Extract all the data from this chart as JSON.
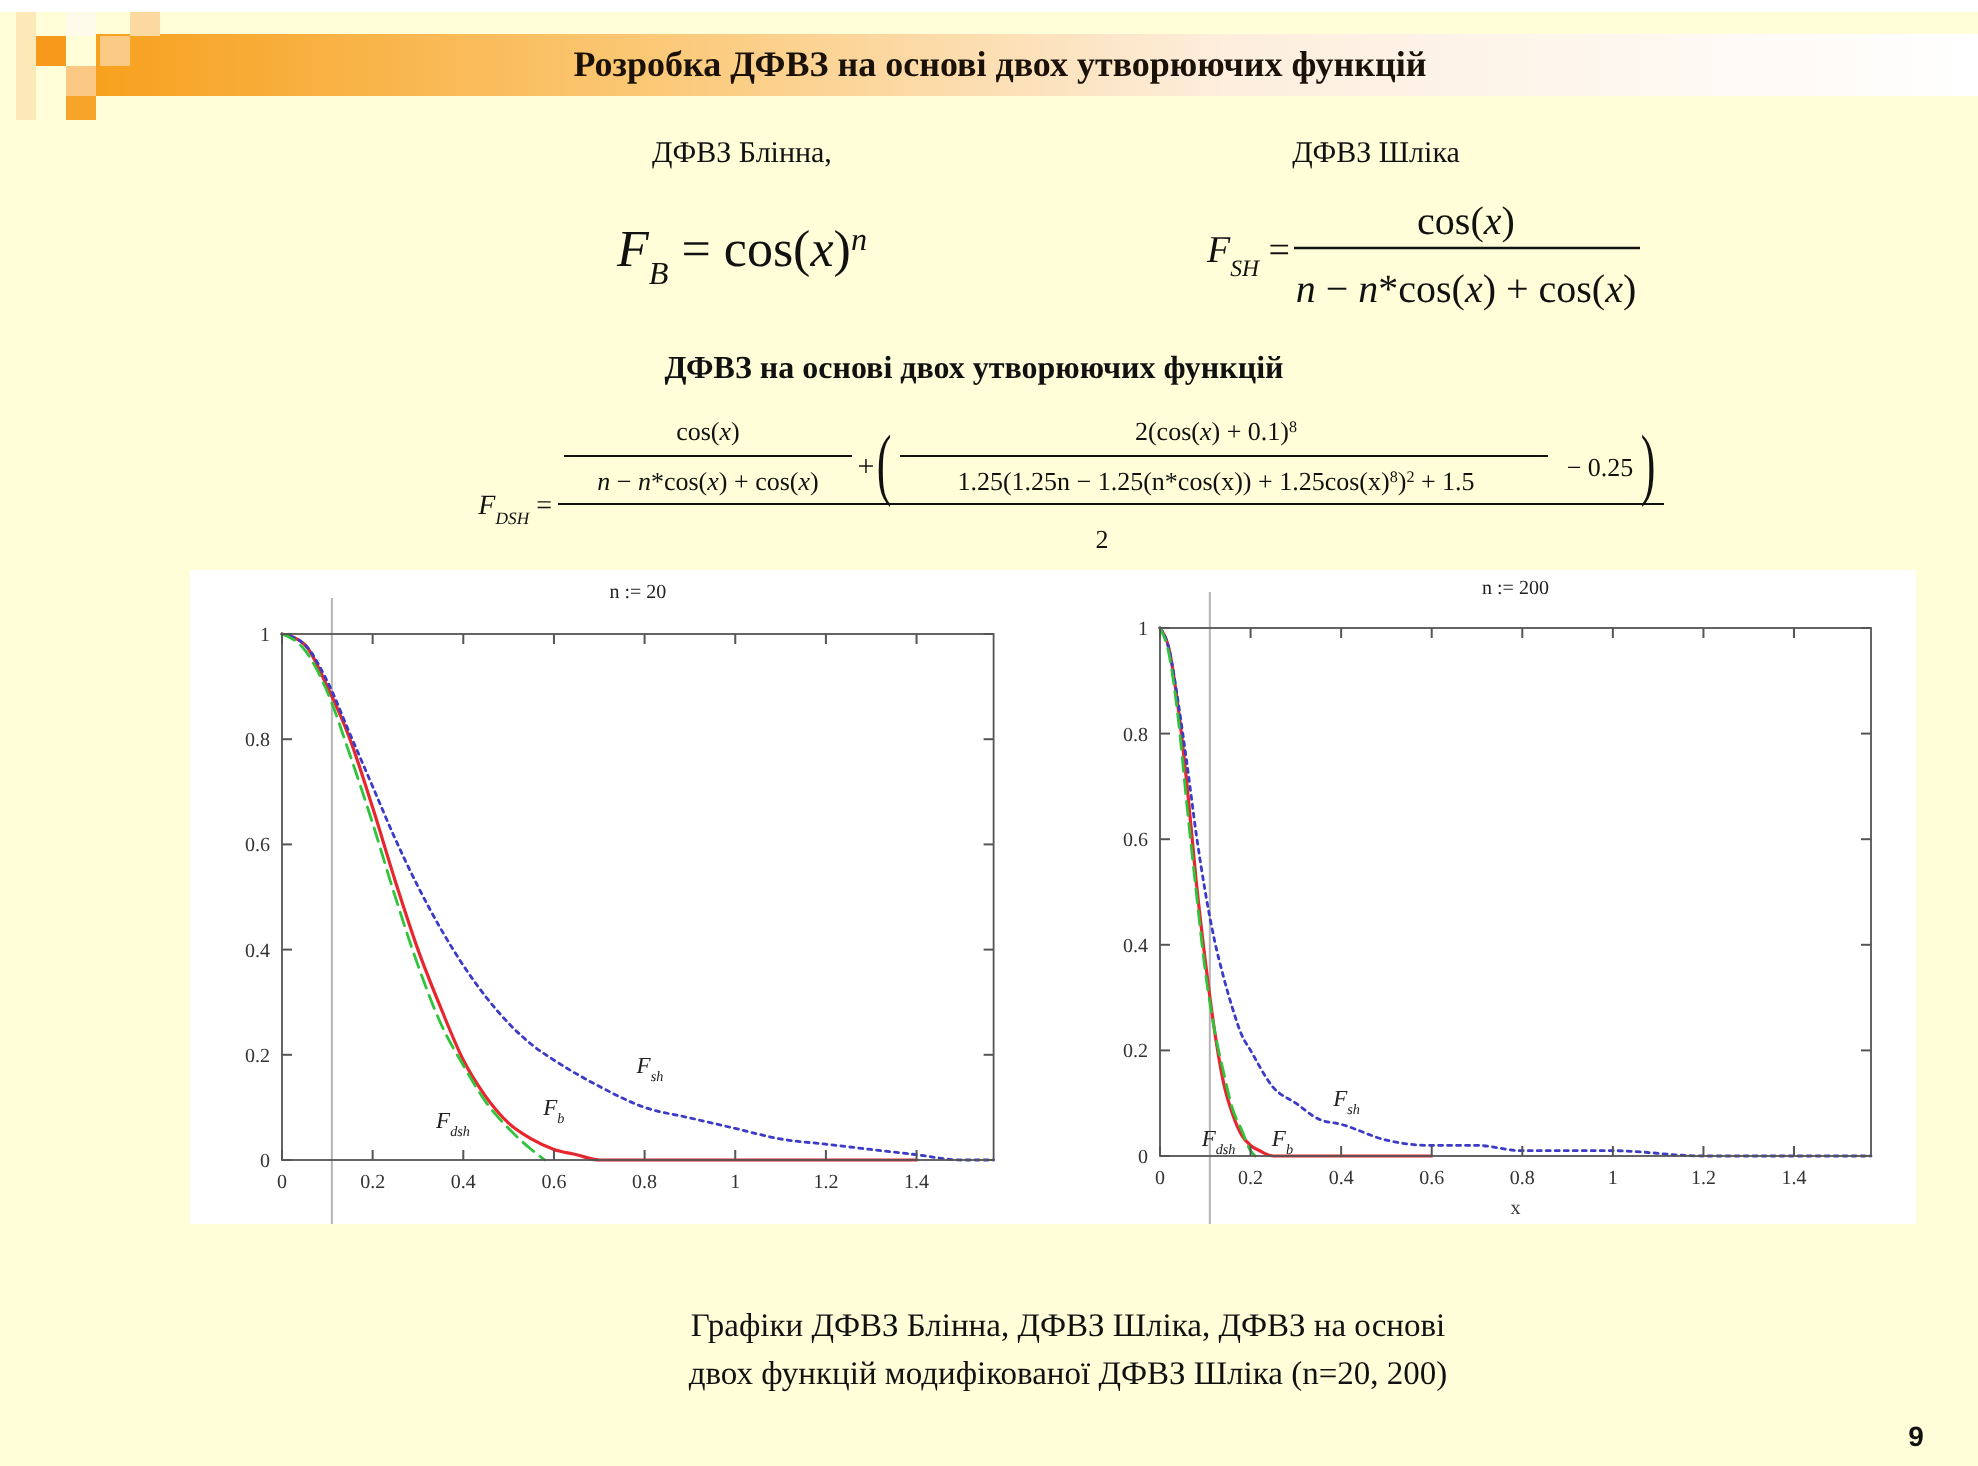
{
  "chart_data": [
    {
      "type": "other",
      "title": "Розробка ДФВЗ на основі двох утворюючих функцій",
      "annotations": [
        "ДФВЗ Блінна,",
        "F$_{B}$ = cos(x)$^{n}$",
        "ДФВЗ Шліка",
        "F$_{SH}$ =",
        "cos(x)",
        "n − n*cos(x) + cos(x)",
        "ДФВЗ на основі двох утворюючих функцій",
        "F$_{DSH}$ =",
        "cos(x)",
        "n − n*cos(x) + cos(x)",
        "+",
        "(",
        "2(cos(x) + 0.1)$^{8}$",
        "1.25(1.25n − 1.25(n*cos(x)) + 1.25cos(x)$^{8}$)$^{2}$ + 1.5",
        "− 0.25",
        ")",
        "2"
      ]
    },
    {
      "type": "line",
      "title": "n := 20",
      "xlim": [
        0,
        1.57
      ],
      "xticks": [
        0,
        0.2,
        0.4,
        0.6,
        0.8,
        1,
        1.2,
        1.4
      ],
      "ylim": [
        0,
        1
      ],
      "yticks": [
        0,
        0.2,
        0.4,
        0.6,
        0.8,
        1
      ],
      "ref_lines": [
        {
          "axis": "x",
          "value": 0.11,
          "color": "#b4b4b4"
        }
      ],
      "series": [
        {
          "name": "F$_{b}$",
          "color": "#e8262e",
          "line_style": "solid",
          "x": [
            0,
            0.05,
            0.1,
            0.15,
            0.2,
            0.25,
            0.3,
            0.35,
            0.4,
            0.45,
            0.5,
            0.55,
            0.6,
            0.65,
            0.7,
            0.8,
            1,
            1.2,
            1.4
          ],
          "values": [
            1,
            0.98,
            0.9,
            0.8,
            0.67,
            0.53,
            0.4,
            0.29,
            0.19,
            0.12,
            0.07,
            0.04,
            0.02,
            0.01,
            0,
            0,
            0,
            0,
            0
          ]
        },
        {
          "name": "F$_{sh}$",
          "color": "#3b3bc8",
          "line_style": "dotted",
          "x": [
            0,
            0.05,
            0.1,
            0.15,
            0.2,
            0.25,
            0.3,
            0.35,
            0.4,
            0.45,
            0.5,
            0.55,
            0.6,
            0.7,
            0.8,
            0.9,
            1,
            1.1,
            1.2,
            1.3,
            1.4,
            1.5,
            1.57
          ],
          "values": [
            1,
            0.98,
            0.91,
            0.81,
            0.71,
            0.61,
            0.52,
            0.44,
            0.37,
            0.31,
            0.26,
            0.22,
            0.19,
            0.14,
            0.1,
            0.08,
            0.06,
            0.04,
            0.03,
            0.02,
            0.01,
            0,
            0
          ]
        },
        {
          "name": "F$_{dsh}$",
          "color": "#2fc43c",
          "line_style": "dashed",
          "x": [
            0,
            0.05,
            0.1,
            0.15,
            0.2,
            0.25,
            0.3,
            0.35,
            0.4,
            0.45,
            0.5,
            0.55,
            0.58
          ],
          "values": [
            1,
            0.97,
            0.89,
            0.77,
            0.64,
            0.5,
            0.37,
            0.26,
            0.18,
            0.11,
            0.06,
            0.02,
            0
          ]
        }
      ]
    },
    {
      "type": "line",
      "title": "n := 200",
      "xlabel": "x",
      "xlim": [
        0,
        1.57
      ],
      "xticks": [
        0,
        0.2,
        0.4,
        0.6,
        0.8,
        1,
        1.2,
        1.4
      ],
      "ylim": [
        0,
        1
      ],
      "yticks": [
        0,
        0.2,
        0.4,
        0.6,
        0.8,
        1
      ],
      "ref_lines": [
        {
          "axis": "x",
          "value": 0.11,
          "color": "#b4b4b4"
        }
      ],
      "series": [
        {
          "name": "F$_{b}$",
          "color": "#e8262e",
          "line_style": "solid",
          "x": [
            0,
            0.02,
            0.04,
            0.06,
            0.08,
            0.1,
            0.12,
            0.14,
            0.16,
            0.18,
            0.2,
            0.22,
            0.25,
            0.3,
            0.4,
            0.5,
            0.6
          ],
          "values": [
            1,
            0.96,
            0.85,
            0.7,
            0.52,
            0.37,
            0.24,
            0.14,
            0.08,
            0.04,
            0.02,
            0.01,
            0,
            0,
            0,
            0,
            0
          ]
        },
        {
          "name": "F$_{sh}$",
          "color": "#3b3bc8",
          "line_style": "dotted",
          "x": [
            0,
            0.02,
            0.04,
            0.06,
            0.08,
            0.1,
            0.12,
            0.14,
            0.16,
            0.18,
            0.2,
            0.25,
            0.3,
            0.35,
            0.4,
            0.5,
            0.6,
            0.7,
            0.8,
            1,
            1.2,
            1.4,
            1.57
          ],
          "values": [
            1,
            0.96,
            0.86,
            0.74,
            0.61,
            0.5,
            0.41,
            0.34,
            0.28,
            0.23,
            0.2,
            0.13,
            0.1,
            0.07,
            0.06,
            0.03,
            0.02,
            0.02,
            0.01,
            0.01,
            0,
            0,
            0
          ]
        },
        {
          "name": "F$_{dsh}$",
          "color": "#2fc43c",
          "line_style": "dashed",
          "x": [
            0,
            0.02,
            0.04,
            0.06,
            0.08,
            0.1,
            0.12,
            0.14,
            0.16,
            0.18,
            0.2,
            0.21
          ],
          "values": [
            1,
            0.95,
            0.83,
            0.66,
            0.5,
            0.35,
            0.24,
            0.16,
            0.09,
            0.05,
            0.01,
            0
          ]
        }
      ]
    },
    {
      "type": "other",
      "annotations": [
        "Графіки ДФВЗ Блінна, ДФВЗ Шліка, ДФВЗ на основі",
        "двох функцій модифікованої ДФВЗ Шліка (n=20, 200)",
        "9"
      ]
    }
  ]
}
